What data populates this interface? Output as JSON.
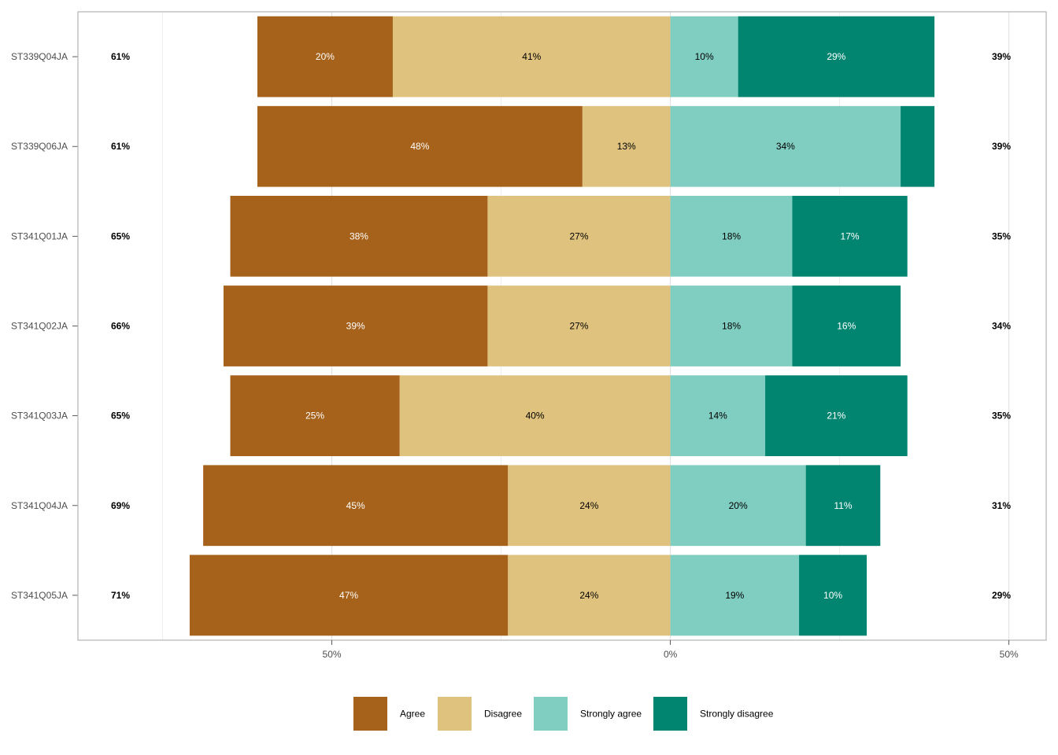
{
  "chart_data": {
    "type": "bar",
    "orientation": "horizontal-diverging",
    "categories": [
      "ST339Q04JA",
      "ST339Q06JA",
      "ST341Q01JA",
      "ST341Q02JA",
      "ST341Q03JA",
      "ST341Q04JA",
      "ST341Q05JA"
    ],
    "series": [
      {
        "name": "Agree",
        "color": "#A6611A",
        "side": "left",
        "values": [
          20,
          48,
          38,
          39,
          25,
          45,
          47
        ],
        "labels": [
          "20%",
          "48%",
          "38%",
          "39%",
          "25%",
          "45%",
          "47%"
        ]
      },
      {
        "name": "Disagree",
        "color": "#DFC27D",
        "side": "left",
        "values": [
          41,
          13,
          27,
          27,
          40,
          24,
          24
        ],
        "labels": [
          "41%",
          "13%",
          "27%",
          "27%",
          "40%",
          "24%",
          "24%"
        ]
      },
      {
        "name": "Strongly agree",
        "color": "#80CDC1",
        "side": "right",
        "values": [
          10,
          34,
          18,
          18,
          14,
          20,
          19
        ],
        "labels": [
          "10%",
          "34%",
          "18%",
          "18%",
          "14%",
          "20%",
          "19%"
        ]
      },
      {
        "name": "Strongly disagree",
        "color": "#018571",
        "side": "right",
        "values": [
          29,
          5,
          17,
          16,
          21,
          11,
          10
        ],
        "labels": [
          "29%",
          "",
          "17%",
          "16%",
          "21%",
          "11%",
          "10%"
        ]
      }
    ],
    "left_totals": [
      "61%",
      "61%",
      "65%",
      "66%",
      "65%",
      "69%",
      "71%"
    ],
    "right_totals": [
      "39%",
      "39%",
      "35%",
      "34%",
      "35%",
      "31%",
      "29%"
    ],
    "x_ticks": [
      {
        "value": -50,
        "label": "50%"
      },
      {
        "value": 0,
        "label": "0%"
      },
      {
        "value": 50,
        "label": "50%"
      }
    ],
    "xlim": [
      -87.5,
      55.5
    ],
    "grid": true,
    "legend": {
      "position": "bottom",
      "entries": [
        "Agree",
        "Disagree",
        "Strongly agree",
        "Strongly disagree"
      ]
    }
  }
}
